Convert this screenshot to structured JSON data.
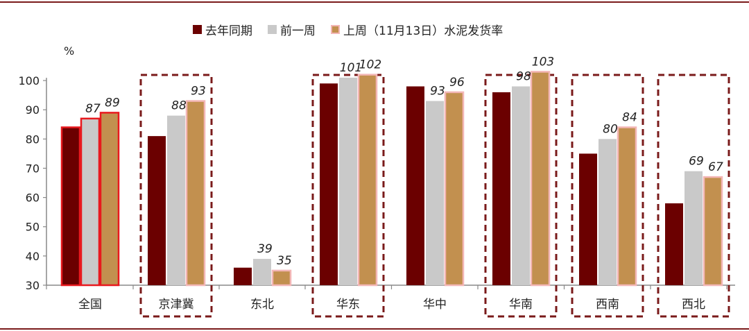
{
  "legend": {
    "items": [
      {
        "label": "去年同期",
        "color": "#6b0000"
      },
      {
        "label": "前一周",
        "color": "#c9c9c9"
      },
      {
        "label": "上周（11月13日）水泥发货率",
        "color": "#c2904f",
        "border": "#f3b6b6"
      }
    ]
  },
  "unit_label": "%",
  "chart_data": {
    "type": "bar",
    "categories": [
      "全国",
      "京津冀",
      "东北",
      "华东",
      "华中",
      "华南",
      "西南",
      "西北"
    ],
    "series": [
      {
        "name": "去年同期",
        "values": [
          84,
          81,
          36,
          99,
          98,
          96,
          75,
          58
        ],
        "color": "#6b0000"
      },
      {
        "name": "前一周",
        "values": [
          87,
          88,
          39,
          101,
          93,
          98,
          80,
          69
        ],
        "color": "#c9c9c9"
      },
      {
        "name": "上周（11月13日）水泥发货率",
        "values": [
          89,
          93,
          35,
          102,
          96,
          103,
          84,
          67
        ],
        "color": "#c2904f"
      }
    ],
    "data_labels": {
      "全国": [
        "",
        "87",
        "89"
      ],
      "京津冀": [
        "",
        "88",
        "93"
      ],
      "东北": [
        "",
        "39",
        "35"
      ],
      "华东": [
        "",
        "101",
        "102"
      ],
      "华中": [
        "",
        "93",
        "96"
      ],
      "华南": [
        "",
        "98",
        "103"
      ],
      "西南": [
        "",
        "80",
        "84"
      ],
      "西北": [
        "",
        "69",
        "67"
      ]
    },
    "y_ticks": [
      "30",
      "40",
      "50",
      "60",
      "70",
      "80",
      "90",
      "100"
    ],
    "ylim": [
      30,
      105
    ],
    "highlighted_categories": [
      "京津冀",
      "华东",
      "华南",
      "西南",
      "西北"
    ],
    "red_outlined_category": "全国",
    "frame_color": "#7a1a1a",
    "axis_color": "#888888"
  }
}
